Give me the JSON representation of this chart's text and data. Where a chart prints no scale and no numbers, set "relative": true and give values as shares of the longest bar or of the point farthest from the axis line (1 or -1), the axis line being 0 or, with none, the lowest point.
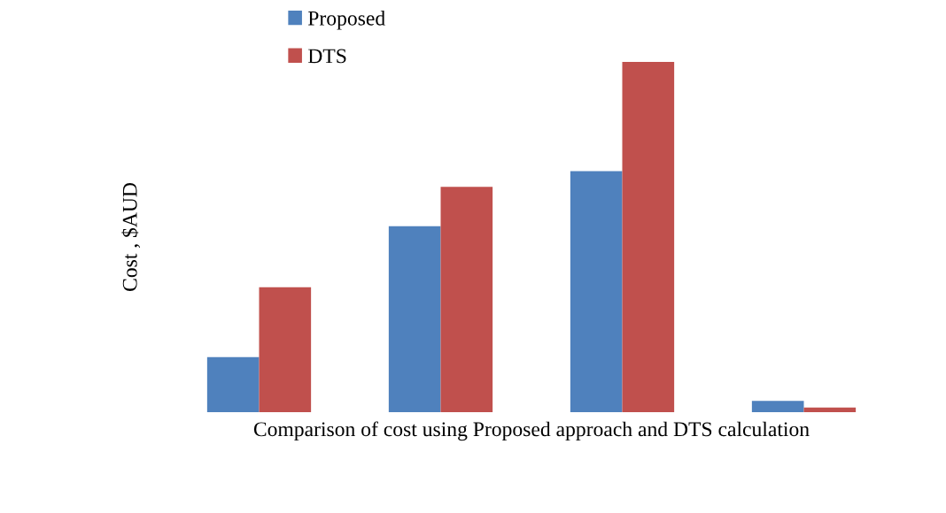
{
  "chart_data": {
    "type": "bar",
    "relative": true,
    "xlabel": "Comparison of cost using Proposed approach and DTS calculation",
    "ylabel": "Cost , $AUD",
    "categories": [
      null,
      null,
      null,
      null
    ],
    "legend": "top left",
    "grid": false,
    "series": [
      {
        "name": "Proposed",
        "color": "#4f81bd",
        "values": [
          0.157,
          0.531,
          0.688,
          0.032
        ]
      },
      {
        "name": "DTS",
        "color": "#c0504d",
        "values": [
          0.357,
          0.643,
          1,
          0.013
        ]
      }
    ]
  }
}
